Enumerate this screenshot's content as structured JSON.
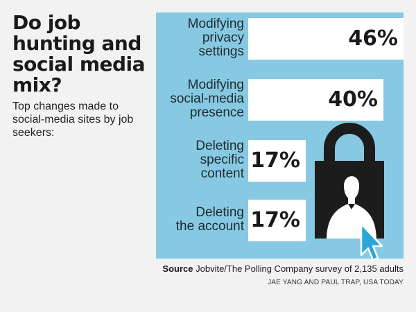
{
  "title": "Do job hunting and social media mix?",
  "subtitle": "Top changes made to social-media sites by job seekers:",
  "chart_data": {
    "type": "bar",
    "orientation": "horizontal",
    "categories": [
      "Modifying privacy settings",
      "Modifying social-media presence",
      "Deleting specific content",
      "Deleting the account"
    ],
    "values": [
      46,
      40,
      17,
      17
    ],
    "value_labels": [
      "46%",
      "40%",
      "17%",
      "17%"
    ],
    "unit": "%",
    "xlim": [
      0,
      46
    ]
  },
  "source": {
    "prefix": "Source",
    "text": "Jobvite/The Polling Company survey of 2,135 adults"
  },
  "credit": "JAE YANG AND PAUL TRAP, USA TODAY",
  "colors": {
    "panel": "#87c9e2",
    "bar": "#ffffff",
    "lock": "#1c1c1c",
    "cursor": "#2aa7d6"
  },
  "illustration": {
    "icons": [
      "padlock-icon",
      "person-silhouette-icon",
      "cursor-arrow-icon"
    ]
  }
}
